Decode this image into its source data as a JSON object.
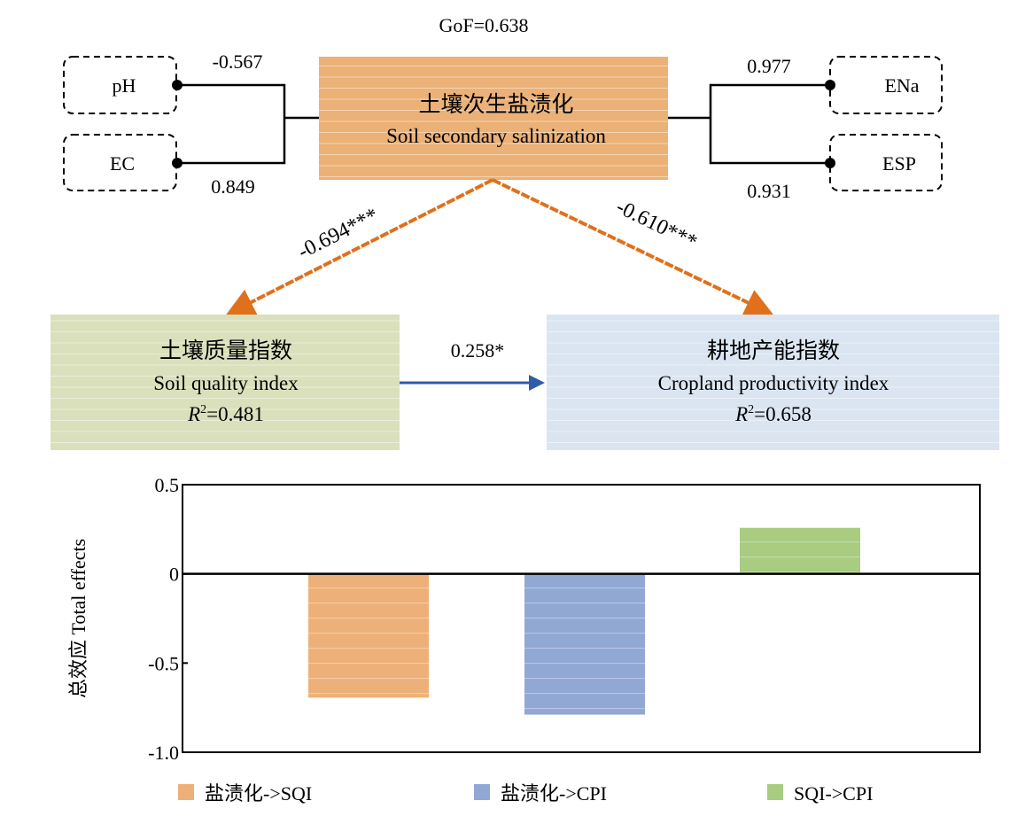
{
  "model": {
    "gof": "GoF=0.638",
    "indicators_left": [
      {
        "label": "pH",
        "loading": "-0.567"
      },
      {
        "label": "EC",
        "loading": "0.849"
      }
    ],
    "indicators_right": [
      {
        "label": "ENa",
        "loading": "0.977"
      },
      {
        "label": "ESP",
        "loading": "0.931"
      }
    ],
    "salinization": {
      "title_cn": "土壤次生盐渍化",
      "title_en": "Soil secondary salinization",
      "color": "#ebb177"
    },
    "sqi": {
      "title_cn": "土壤质量指数",
      "title_en": "Soil quality index",
      "r2_label": "R",
      "r2_sup": "2",
      "r2_value": "=0.481",
      "color": "#d9e0bb"
    },
    "cpi": {
      "title_cn": "耕地产能指数",
      "title_en": "Cropland productivity index",
      "r2_label": "R",
      "r2_sup": "2",
      "r2_value": "=0.658",
      "color": "#dae5f1"
    },
    "paths": {
      "sal_to_sqi": "-0.694***",
      "sal_to_cpi": "-0.610***",
      "sqi_to_cpi": "0.258*"
    },
    "arrow_colors": {
      "orange": "#e0701b",
      "blue": "#2f5ca8"
    }
  },
  "chart_data": {
    "type": "bar",
    "ylabel": "总效应 Total effects",
    "xlabel": "",
    "ylim": [
      -1.0,
      0.5
    ],
    "yticks": [
      "0.5",
      "0",
      "-0.5",
      "-1.0"
    ],
    "ytick_values": [
      0.5,
      0,
      -0.5,
      -1.0
    ],
    "categories": [
      "盐渍化->SQI",
      "盐渍化->CPI",
      "SQI->CPI"
    ],
    "values": [
      -0.694,
      -0.789,
      0.258
    ],
    "colors": [
      "#edb078",
      "#91a7d4",
      "#a8cc80"
    ],
    "legend": "bottom",
    "grid": false
  }
}
